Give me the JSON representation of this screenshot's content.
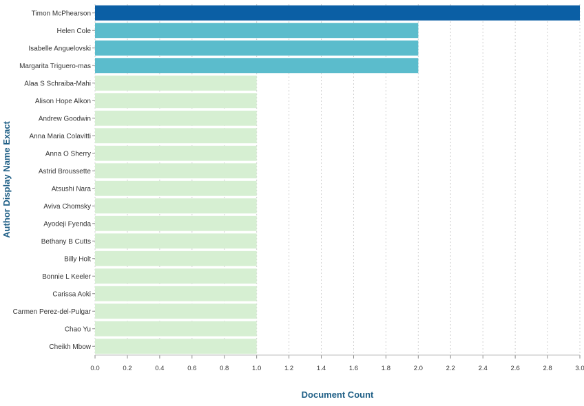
{
  "chart_data": {
    "type": "bar",
    "orientation": "horizontal",
    "categories": [
      "Timon McPhearson",
      "Helen Cole",
      "Isabelle Anguelovski",
      "Margarita Triguero-mas",
      "Alaa S Schraiba-Mahi",
      "Alison Hope Alkon",
      "Andrew Goodwin",
      "Anna Maria Colavitti",
      "Anna O Sherry",
      "Astrid Broussette",
      "Atsushi Nara",
      "Aviva Chomsky",
      "Ayodeji Fyenda",
      "Bethany B Cutts",
      "Billy Holt",
      "Bonnie L Keeler",
      "Carissa Aoki",
      "Carmen Perez-del-Pulgar",
      "Chao Yu",
      "Cheikh Mbow"
    ],
    "values": [
      3,
      2,
      2,
      2,
      1,
      1,
      1,
      1,
      1,
      1,
      1,
      1,
      1,
      1,
      1,
      1,
      1,
      1,
      1,
      1
    ],
    "xlabel": "Document Count",
    "ylabel": "Author Display Name Exact",
    "xlim": [
      0,
      3
    ],
    "x_ticks": [
      "0.0",
      "0.2",
      "0.4",
      "0.6",
      "0.8",
      "1.0",
      "1.2",
      "1.4",
      "1.6",
      "1.8",
      "2.0",
      "2.2",
      "2.4",
      "2.6",
      "2.8",
      "3.0"
    ],
    "grid": "vertical-dashed",
    "colors": {
      "3": "#0b5fa5",
      "2": "#5bbccc",
      "1": "#d6efd2"
    }
  }
}
